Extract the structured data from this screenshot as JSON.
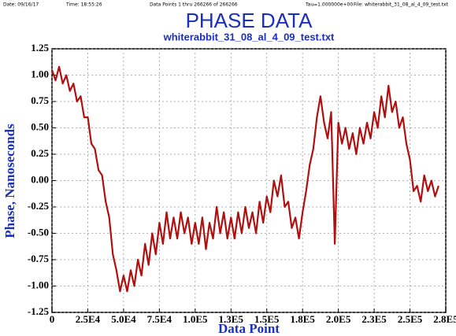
{
  "chart_data": {
    "type": "line",
    "header": {
      "date": "Date: 09/16/17",
      "time": "Time: 18:55:26",
      "points": "Data Points 1 thru 266266 of 266266",
      "tau": "Tau=1.000000e+00",
      "file": "File: whiterabbit_31_08_al_4_09_test.txt"
    },
    "title": "PHASE DATA",
    "subtitle": "whiterabbit_31_08_al_4_09_test.txt",
    "xlabel": "Data Point",
    "ylabel": "Phase, Nanoseconds",
    "xlim": [
      0,
      275000
    ],
    "ylim": [
      -1.25,
      1.25
    ],
    "xticks": [
      0,
      {
        "value": 25000,
        "label": "2.5E4"
      },
      {
        "value": 50000,
        "label": "5.0E4"
      },
      {
        "value": 75000,
        "label": "7.5E4"
      },
      {
        "value": 100000,
        "label": "1.0E5"
      },
      {
        "value": 125000,
        "label": "1.3E5"
      },
      {
        "value": 150000,
        "label": "1.5E5"
      },
      {
        "value": 175000,
        "label": "1.8E5"
      },
      {
        "value": 200000,
        "label": "2.0E5"
      },
      {
        "value": 225000,
        "label": "2.3E5"
      },
      {
        "value": 250000,
        "label": "2.5E5"
      },
      {
        "value": 275000,
        "label": "2.8E5"
      }
    ],
    "yticks": [
      1.25,
      {
        "value": 1,
        "label": "1.00"
      },
      0.75,
      {
        "value": 0.5,
        "label": "0.50"
      },
      0.25,
      {
        "value": 0,
        "label": "0.00"
      },
      -0.25,
      {
        "value": -0.5,
        "label": "-0.50"
      },
      -0.75,
      {
        "value": -1,
        "label": "-1.00"
      },
      -1.25
    ],
    "grid": true,
    "x": [
      0,
      2500,
      5000,
      7500,
      10000,
      12500,
      15000,
      17500,
      20000,
      22500,
      25000,
      27500,
      30000,
      32500,
      35000,
      37500,
      40000,
      42500,
      45000,
      47500,
      50000,
      52500,
      55000,
      57500,
      60000,
      62500,
      65000,
      67500,
      70000,
      72500,
      75000,
      77500,
      80000,
      82500,
      85000,
      87500,
      90000,
      92500,
      95000,
      97500,
      100000,
      102500,
      105000,
      107500,
      110000,
      112500,
      115000,
      117500,
      120000,
      122500,
      125000,
      127500,
      130000,
      132500,
      135000,
      137500,
      140000,
      142500,
      145000,
      147500,
      150000,
      152500,
      155000,
      157500,
      160000,
      162500,
      165000,
      167500,
      170000,
      172500,
      175000,
      177500,
      180000,
      182500,
      185000,
      187500,
      190000,
      192500,
      195000,
      197500,
      200000,
      202500,
      205000,
      207500,
      210000,
      212500,
      215000,
      217500,
      220000,
      222500,
      225000,
      227500,
      230000,
      232500,
      235000,
      237500,
      240000,
      242500,
      245000,
      247500,
      250000,
      252500,
      255000,
      257500,
      260000,
      262500,
      265000,
      267500,
      270000
    ],
    "series": [
      {
        "name": "Phase",
        "color": "#b01010",
        "values": [
          1.05,
          0.95,
          1.08,
          0.92,
          1.0,
          0.85,
          0.92,
          0.75,
          0.8,
          0.6,
          0.6,
          0.35,
          0.3,
          0.1,
          0.05,
          -0.2,
          -0.35,
          -0.7,
          -0.85,
          -1.05,
          -0.9,
          -1.05,
          -0.85,
          -1.0,
          -0.75,
          -0.9,
          -0.6,
          -0.8,
          -0.5,
          -0.7,
          -0.4,
          -0.6,
          -0.3,
          -0.55,
          -0.35,
          -0.55,
          -0.3,
          -0.5,
          -0.35,
          -0.6,
          -0.4,
          -0.6,
          -0.35,
          -0.65,
          -0.4,
          -0.55,
          -0.25,
          -0.5,
          -0.3,
          -0.55,
          -0.35,
          -0.55,
          -0.3,
          -0.5,
          -0.25,
          -0.45,
          -0.3,
          -0.5,
          -0.2,
          -0.4,
          -0.15,
          -0.3,
          0.0,
          -0.15,
          0.05,
          -0.25,
          -0.2,
          -0.45,
          -0.35,
          -0.55,
          -0.3,
          -0.1,
          0.15,
          0.3,
          0.6,
          0.8,
          0.55,
          0.4,
          0.65,
          -0.6,
          0.55,
          0.35,
          0.5,
          0.3,
          0.45,
          0.25,
          0.5,
          0.35,
          0.55,
          0.4,
          0.65,
          0.5,
          0.8,
          0.6,
          0.9,
          0.65,
          0.75,
          0.5,
          0.6,
          0.35,
          0.2,
          -0.1,
          -0.05,
          -0.2,
          0.05,
          -0.1,
          0.0,
          -0.15,
          -0.05
        ]
      }
    ]
  }
}
